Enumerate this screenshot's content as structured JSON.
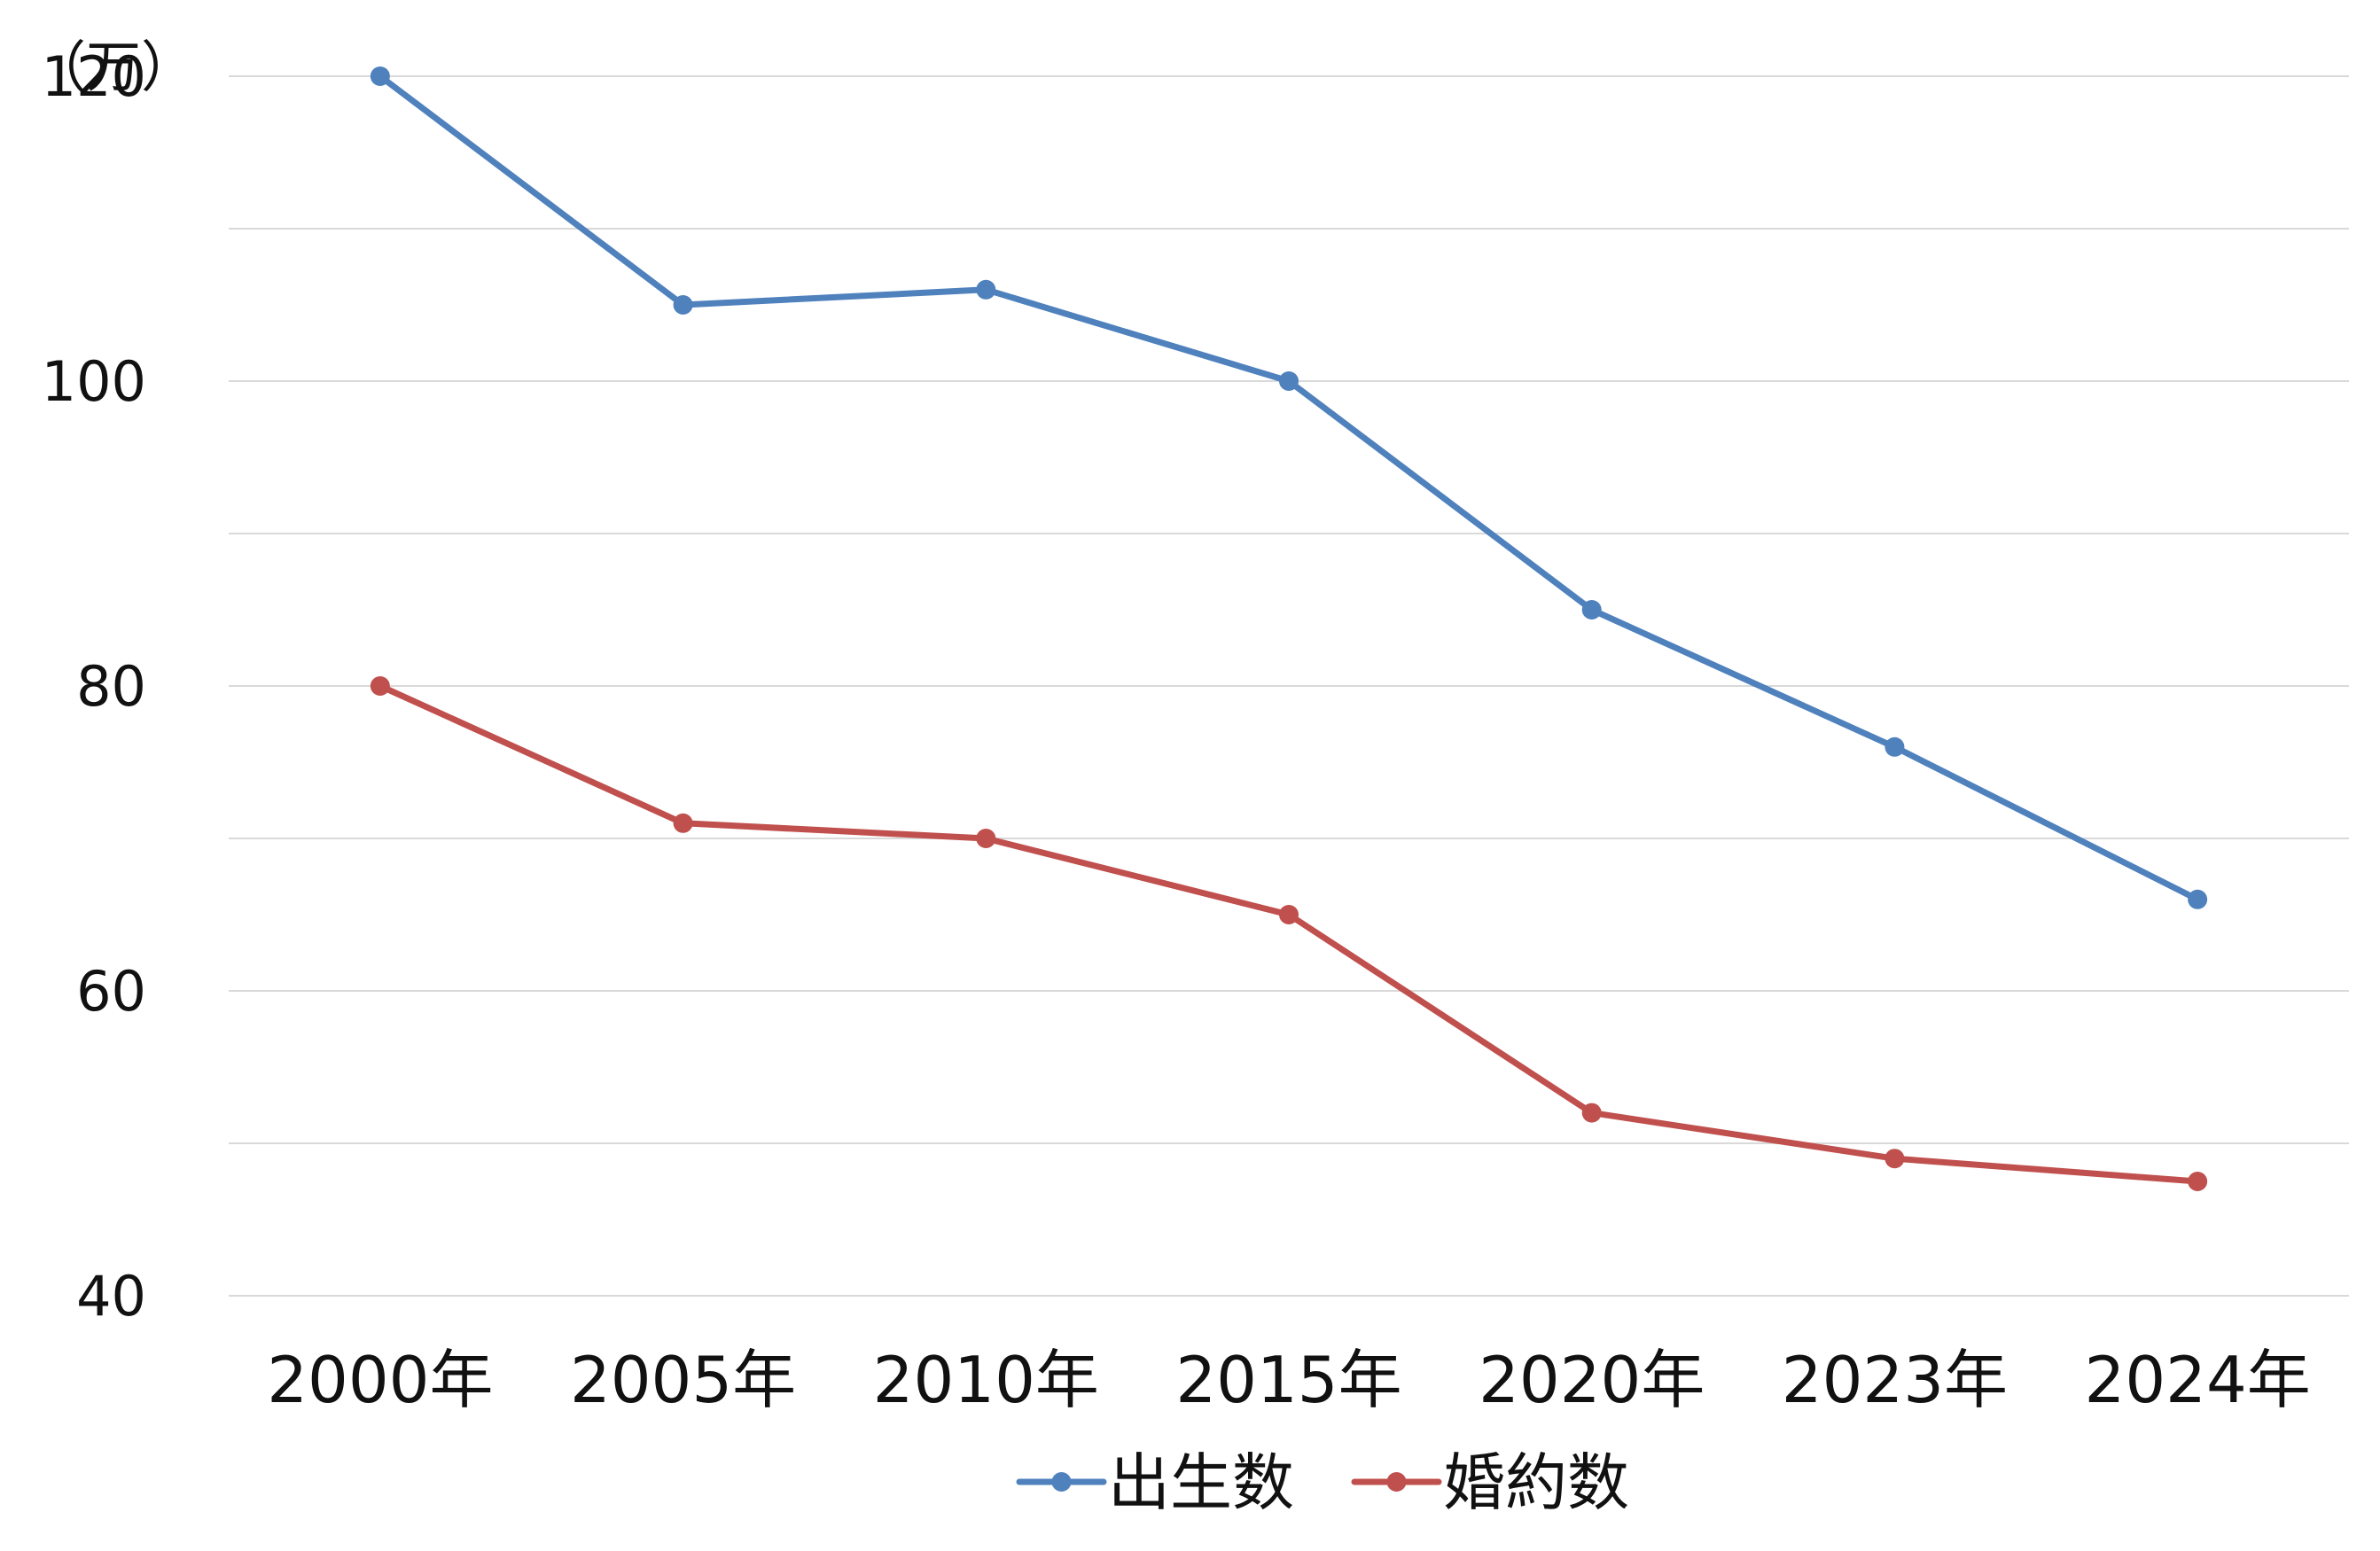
{
  "chart_data": {
    "type": "line",
    "unit_label": "（万）",
    "categories": [
      "2000年",
      "2005年",
      "2010年",
      "2015年",
      "2020年",
      "2023年",
      "2024年"
    ],
    "series": [
      {
        "name": "出生数",
        "values": [
          120,
          105,
          106,
          100,
          85,
          76,
          66
        ],
        "color": "#4f81bd"
      },
      {
        "name": "婚約数",
        "values": [
          80,
          71,
          70,
          65,
          52,
          49,
          47.5
        ],
        "color": "#c0504d"
      }
    ],
    "ylim": [
      40,
      120
    ],
    "yticks": [
      40,
      60,
      80,
      100,
      120
    ],
    "gridlines": [
      40,
      50,
      60,
      70,
      80,
      90,
      100,
      110,
      120,
      130
    ],
    "grid": true,
    "legend_position": "bottom",
    "markers": true
  }
}
